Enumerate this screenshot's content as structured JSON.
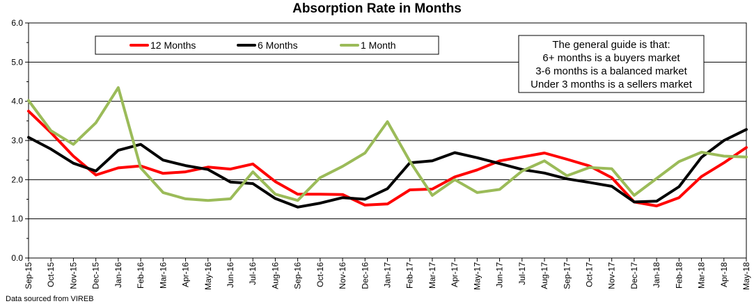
{
  "chart_data": {
    "type": "line",
    "title": "Absorption Rate in Months",
    "xlabel": "",
    "ylabel": "",
    "ylim": [
      0,
      6
    ],
    "y_ticks": [
      "0.0",
      "1.0",
      "2.0",
      "3.0",
      "4.0",
      "5.0",
      "6.0"
    ],
    "grid": true,
    "legend_position": "top-left",
    "categories": [
      "Sep-15",
      "Oct-15",
      "Nov-15",
      "Dec-15",
      "Jan-16",
      "Feb-16",
      "Mar-16",
      "Apr-16",
      "May-16",
      "Jun-16",
      "Jul-16",
      "Aug-16",
      "Sep-16",
      "Oct-16",
      "Nov-16",
      "Dec-16",
      "Jan-17",
      "Feb-17",
      "Mar-17",
      "Apr-17",
      "May-17",
      "Jun-17",
      "Jul-17",
      "Aug-17",
      "Sep-17",
      "Oct-17",
      "Nov-17",
      "Dec-17",
      "Jan-18",
      "Feb-18",
      "Mar-18",
      "Apr-18",
      "May-18"
    ],
    "series": [
      {
        "name": "12 Months",
        "color": "#ff0000",
        "values": [
          3.75,
          3.2,
          2.6,
          2.12,
          2.3,
          2.35,
          2.16,
          2.2,
          2.32,
          2.27,
          2.4,
          1.95,
          1.63,
          1.63,
          1.62,
          1.35,
          1.38,
          1.74,
          1.76,
          2.07,
          2.25,
          2.48,
          2.58,
          2.68,
          2.52,
          2.35,
          2.05,
          1.43,
          1.33,
          1.54,
          2.08,
          2.43,
          2.82
        ]
      },
      {
        "name": "6 Months",
        "color": "#000000",
        "values": [
          3.08,
          2.78,
          2.42,
          2.22,
          2.75,
          2.9,
          2.5,
          2.36,
          2.26,
          1.94,
          1.9,
          1.52,
          1.3,
          1.4,
          1.54,
          1.5,
          1.77,
          2.43,
          2.48,
          2.69,
          2.56,
          2.41,
          2.26,
          2.17,
          2.02,
          1.93,
          1.83,
          1.43,
          1.45,
          1.82,
          2.57,
          3.0,
          3.28
        ]
      },
      {
        "name": "1 Month",
        "color": "#9bbb59",
        "values": [
          4.02,
          3.25,
          2.9,
          3.45,
          4.35,
          2.3,
          1.67,
          1.51,
          1.47,
          1.51,
          2.2,
          1.63,
          1.47,
          2.05,
          2.34,
          2.68,
          3.48,
          2.47,
          1.6,
          2.0,
          1.67,
          1.75,
          2.22,
          2.48,
          2.1,
          2.31,
          2.28,
          1.6,
          2.03,
          2.46,
          2.7,
          2.6,
          2.58
        ]
      }
    ],
    "annotation": [
      "The general guide is that:",
      "6+ months is a buyers market",
      "3-6 months is a balanced market",
      "Under 3 months is a sellers market"
    ]
  },
  "footer": {
    "source": "Data sourced from VIREB"
  }
}
